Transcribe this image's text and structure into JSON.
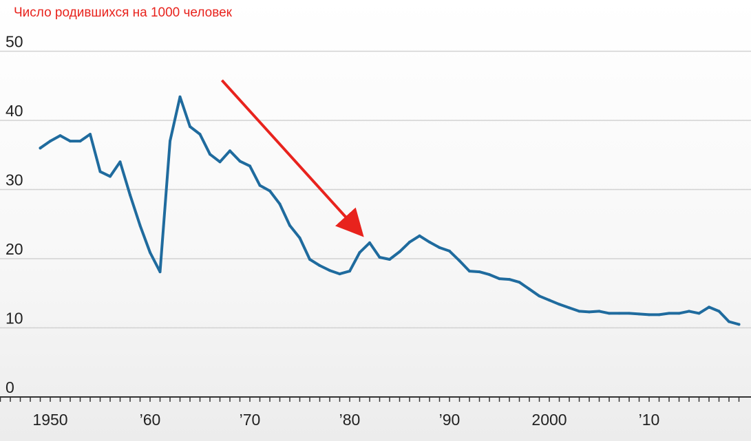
{
  "chart_data": {
    "type": "line",
    "title": "",
    "subtitle": "Число родившихся на 1000 человек",
    "xlabel": "",
    "ylabel": "",
    "ylim": [
      0,
      50
    ],
    "xlim": [
      1945,
      2019
    ],
    "y_ticks": [
      0,
      10,
      20,
      30,
      40,
      50
    ],
    "y_tick_labels": [
      "0",
      "10",
      "20",
      "30",
      "40",
      "50"
    ],
    "x_ticks": [
      1950,
      1960,
      1970,
      1980,
      1990,
      2000,
      2010
    ],
    "x_tick_labels": [
      "1950",
      "’60",
      "’70",
      "’80",
      "’90",
      "2000",
      "’10"
    ],
    "grid": true,
    "series": [
      {
        "color": "#1f6b9e",
        "x": [
          1949,
          1950,
          1951,
          1952,
          1953,
          1954,
          1955,
          1956,
          1957,
          1958,
          1959,
          1960,
          1961,
          1962,
          1963,
          1964,
          1965,
          1966,
          1967,
          1968,
          1969,
          1970,
          1971,
          1972,
          1973,
          1974,
          1975,
          1976,
          1977,
          1978,
          1979,
          1980,
          1981,
          1982,
          1983,
          1984,
          1985,
          1986,
          1987,
          1988,
          1989,
          1990,
          1991,
          1992,
          1993,
          1994,
          1995,
          1996,
          1997,
          1998,
          1999,
          2000,
          2001,
          2002,
          2003,
          2004,
          2005,
          2006,
          2007,
          2008,
          2009,
          2010,
          2011,
          2012,
          2013,
          2014,
          2015,
          2016,
          2017,
          2018,
          2019
        ],
        "values": [
          36.0,
          37.0,
          37.8,
          37.0,
          37.0,
          38.0,
          32.6,
          31.9,
          34.0,
          29.2,
          24.8,
          20.9,
          18.1,
          37.0,
          43.4,
          39.1,
          38.0,
          35.1,
          34.0,
          35.6,
          34.1,
          33.4,
          30.6,
          29.8,
          27.9,
          24.8,
          23.0,
          19.9,
          19.0,
          18.3,
          17.8,
          18.2,
          20.9,
          22.3,
          20.2,
          19.9,
          21.0,
          22.4,
          23.3,
          22.4,
          21.6,
          21.1,
          19.7,
          18.2,
          18.1,
          17.7,
          17.1,
          17.0,
          16.6,
          15.6,
          14.6,
          14.0,
          13.4,
          12.9,
          12.4,
          12.3,
          12.4,
          12.1,
          12.1,
          12.1,
          12.0,
          11.9,
          11.9,
          12.1,
          12.1,
          12.4,
          12.1,
          13.0,
          12.4,
          10.9,
          10.5
        ]
      }
    ],
    "annotation": {
      "type": "arrow",
      "color": "#e8231d",
      "from": [
        1967.2,
        45.8
      ],
      "to": [
        1980.5,
        24.6
      ]
    }
  }
}
